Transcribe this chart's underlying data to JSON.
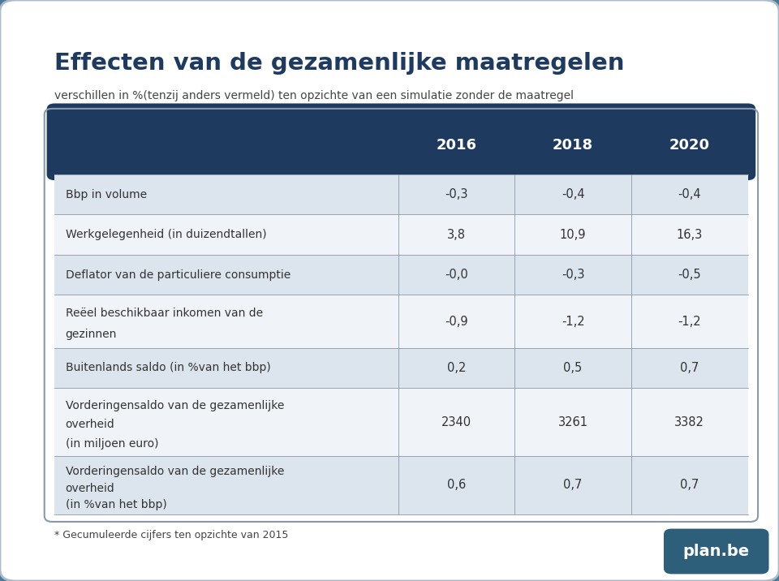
{
  "title": "Effecten van de gezamenlijke maatregelen",
  "subtitle": "verschillen in %(tenzij anders vermeld) ten opzichte van een simulatie zonder de maatregel",
  "columns": [
    "",
    "2016",
    "2018",
    "2020"
  ],
  "rows": [
    {
      "label": "Bbp in volume",
      "label2": "",
      "values": [
        "-0,3",
        "-0,4",
        "-0,4"
      ],
      "shade": "light"
    },
    {
      "label": "Werkgelegenheid (in duizendtallen)",
      "label2": "",
      "values": [
        "3,8",
        "10,9",
        "16,3"
      ],
      "shade": "white"
    },
    {
      "label": "Deflator van de particuliere consumptie",
      "label2": "",
      "values": [
        "-0,0",
        "-0,3",
        "-0,5"
      ],
      "shade": "light"
    },
    {
      "label": "Reëel beschikbaar inkomen van de",
      "label2": "gezinnen",
      "values": [
        "-0,9",
        "-1,2",
        "-1,2"
      ],
      "shade": "white"
    },
    {
      "label": "Buitenlands saldo (in %van het bbp)",
      "label2": "",
      "values": [
        "0,2",
        "0,5",
        "0,7"
      ],
      "shade": "light"
    },
    {
      "label": "Vorderingensaldo van de gezamenlijke",
      "label2": "overheid\n(in miljoen euro)",
      "values": [
        "2340",
        "3261",
        "3382"
      ],
      "shade": "white"
    },
    {
      "label": "Vorderingensaldo van de gezamenlijke",
      "label2": "overheid\n(in %van het bbp)",
      "values": [
        "0,6",
        "0,7",
        "0,7"
      ],
      "shade": "light"
    }
  ],
  "header_bg": "#1e3a5f",
  "header_text": "#ffffff",
  "light_row_bg": "#dce4ed",
  "white_row_bg": "#f0f3f7",
  "cell_text": "#333333",
  "border_color": "#8899aa",
  "title_color": "#1e3a5f",
  "subtitle_color": "#444444",
  "footer_text": "* Gecumuleerde cijfers ten opzichte van 2015",
  "planbe_bg": "#2e5f7a",
  "planbe_text": "plan.be",
  "outer_bg": "#4a7a96",
  "inner_bg": "#ffffff",
  "white_panel_bg": "#ffffff"
}
